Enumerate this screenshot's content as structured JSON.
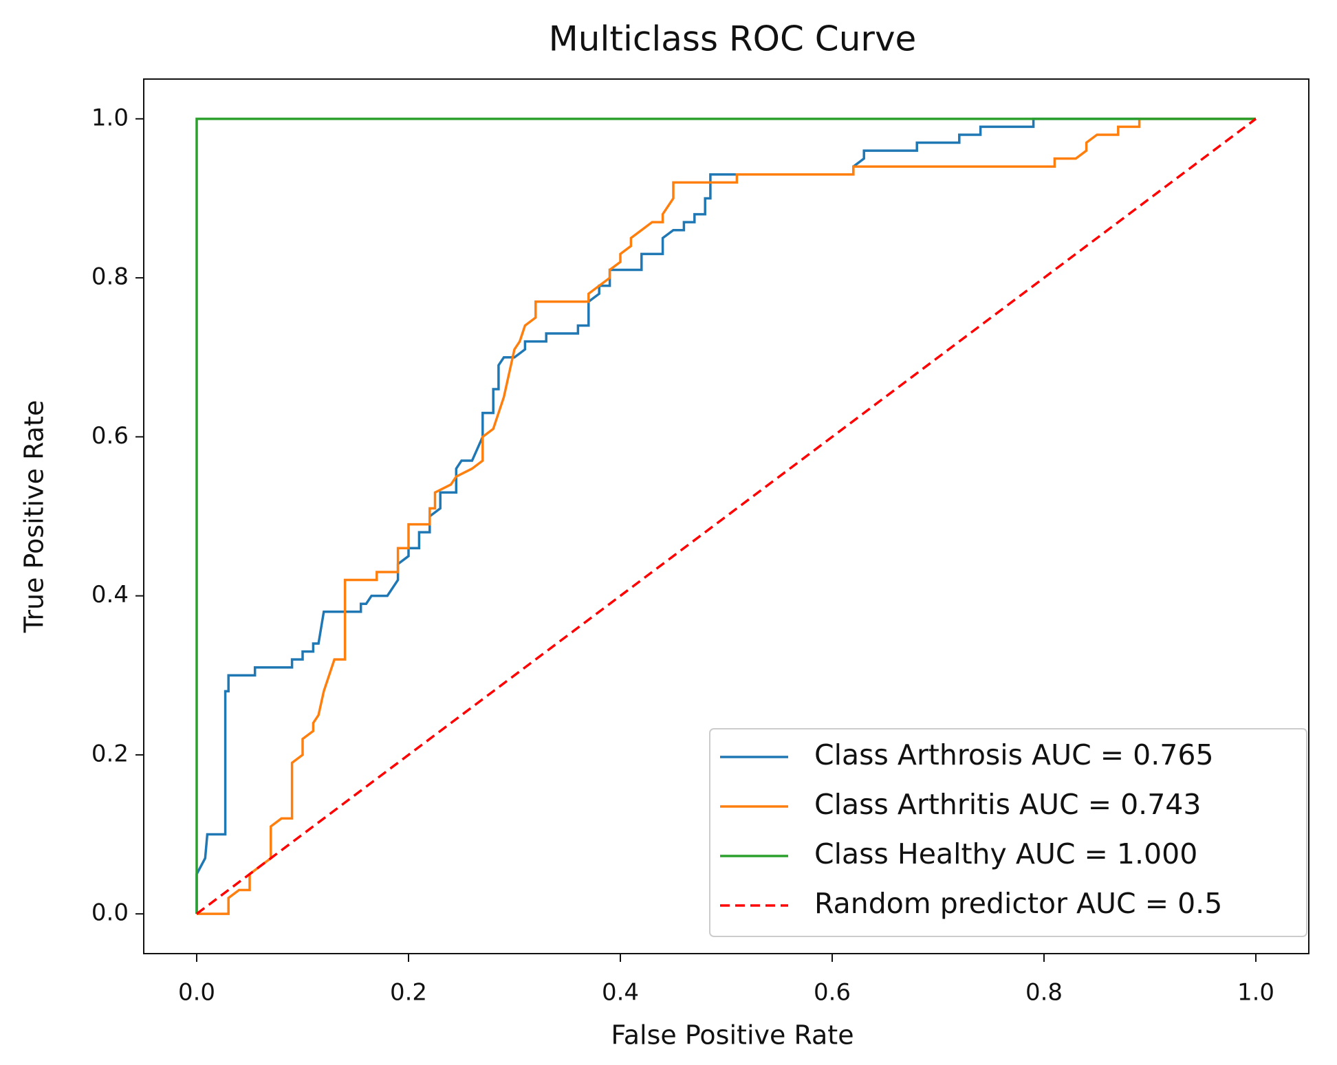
{
  "chart_data": {
    "type": "line",
    "title": "Multiclass ROC Curve",
    "x_label": "False Positive Rate",
    "y_label": "True Positive Rate",
    "xlim": [
      -0.05,
      1.05
    ],
    "ylim": [
      -0.05,
      1.05
    ],
    "xticks": [
      {
        "value": 0,
        "label": "0.0"
      },
      0.2,
      0.4,
      0.6,
      0.8,
      {
        "value": 1,
        "label": "1.0"
      }
    ],
    "yticks": [
      {
        "value": 0,
        "label": "0.0"
      },
      0.2,
      0.4,
      0.6,
      0.8,
      {
        "value": 1,
        "label": "1.0"
      }
    ],
    "legend": "lower right",
    "series": [
      {
        "name": "Class Arthrosis AUC = 0.765",
        "color": "#1f77b4",
        "linestyle": "solid",
        "x": [
          0,
          0,
          0.008,
          0.01,
          0.027,
          0.027,
          0.03,
          0.03,
          0.055,
          0.055,
          0.09,
          0.09,
          0.1,
          0.1,
          0.11,
          0.11,
          0.115,
          0.12,
          0.155,
          0.155,
          0.16,
          0.165,
          0.18,
          0.19,
          0.19,
          0.2,
          0.2,
          0.21,
          0.21,
          0.22,
          0.22,
          0.23,
          0.23,
          0.245,
          0.245,
          0.25,
          0.26,
          0.27,
          0.27,
          0.28,
          0.28,
          0.285,
          0.285,
          0.29,
          0.3,
          0.31,
          0.31,
          0.33,
          0.33,
          0.36,
          0.36,
          0.37,
          0.37,
          0.38,
          0.38,
          0.39,
          0.39,
          0.42,
          0.42,
          0.44,
          0.44,
          0.45,
          0.46,
          0.46,
          0.47,
          0.47,
          0.48,
          0.48,
          0.485,
          0.485,
          0.5,
          0.62,
          0.62,
          0.63,
          0.63,
          0.68,
          0.68,
          0.72,
          0.72,
          0.74,
          0.74,
          0.79,
          0.79,
          1
        ],
        "values": [
          0,
          0.05,
          0.07,
          0.1,
          0.1,
          0.28,
          0.28,
          0.3,
          0.3,
          0.31,
          0.31,
          0.32,
          0.32,
          0.33,
          0.33,
          0.34,
          0.34,
          0.38,
          0.38,
          0.39,
          0.39,
          0.4,
          0.4,
          0.42,
          0.44,
          0.45,
          0.46,
          0.46,
          0.48,
          0.48,
          0.5,
          0.51,
          0.53,
          0.53,
          0.56,
          0.57,
          0.57,
          0.6,
          0.63,
          0.63,
          0.66,
          0.66,
          0.69,
          0.7,
          0.7,
          0.71,
          0.72,
          0.72,
          0.73,
          0.73,
          0.74,
          0.74,
          0.77,
          0.78,
          0.79,
          0.79,
          0.81,
          0.81,
          0.83,
          0.83,
          0.85,
          0.86,
          0.86,
          0.87,
          0.87,
          0.88,
          0.88,
          0.9,
          0.9,
          0.93,
          0.93,
          0.93,
          0.94,
          0.95,
          0.96,
          0.96,
          0.97,
          0.97,
          0.98,
          0.98,
          0.99,
          0.99,
          1,
          1
        ]
      },
      {
        "name": "Class Arthritis AUC = 0.743",
        "color": "#ff7f0e",
        "linestyle": "solid",
        "x": [
          0,
          0.03,
          0.03,
          0.04,
          0.05,
          0.05,
          0.06,
          0.07,
          0.07,
          0.08,
          0.09,
          0.09,
          0.1,
          0.1,
          0.11,
          0.11,
          0.115,
          0.12,
          0.125,
          0.13,
          0.14,
          0.14,
          0.17,
          0.17,
          0.19,
          0.19,
          0.2,
          0.2,
          0.22,
          0.22,
          0.225,
          0.225,
          0.24,
          0.245,
          0.26,
          0.27,
          0.27,
          0.28,
          0.29,
          0.3,
          0.305,
          0.31,
          0.32,
          0.32,
          0.37,
          0.37,
          0.38,
          0.39,
          0.39,
          0.4,
          0.4,
          0.41,
          0.41,
          0.42,
          0.43,
          0.44,
          0.44,
          0.45,
          0.45,
          0.51,
          0.51,
          0.62,
          0.62,
          0.81,
          0.81,
          0.83,
          0.84,
          0.84,
          0.85,
          0.87,
          0.87,
          0.89,
          0.89,
          1
        ],
        "values": [
          0,
          0,
          0.02,
          0.03,
          0.03,
          0.05,
          0.06,
          0.07,
          0.11,
          0.12,
          0.12,
          0.19,
          0.2,
          0.22,
          0.23,
          0.24,
          0.25,
          0.28,
          0.3,
          0.32,
          0.32,
          0.42,
          0.42,
          0.43,
          0.43,
          0.46,
          0.46,
          0.49,
          0.49,
          0.51,
          0.51,
          0.53,
          0.54,
          0.55,
          0.56,
          0.57,
          0.6,
          0.61,
          0.65,
          0.71,
          0.72,
          0.74,
          0.75,
          0.77,
          0.77,
          0.78,
          0.79,
          0.8,
          0.81,
          0.82,
          0.83,
          0.84,
          0.85,
          0.86,
          0.87,
          0.87,
          0.88,
          0.9,
          0.92,
          0.92,
          0.93,
          0.93,
          0.94,
          0.94,
          0.95,
          0.95,
          0.96,
          0.97,
          0.98,
          0.98,
          0.99,
          0.99,
          1,
          1
        ]
      },
      {
        "name": "Class Healthy AUC = 1.000",
        "color": "#2ca02c",
        "linestyle": "solid",
        "x": [
          0,
          0,
          1
        ],
        "values": [
          0,
          1,
          1
        ]
      },
      {
        "name": "Random predictor AUC = 0.5",
        "color": "#ff0000",
        "linestyle": "dashed",
        "x": [
          0,
          1
        ],
        "values": [
          0,
          1
        ]
      }
    ]
  }
}
